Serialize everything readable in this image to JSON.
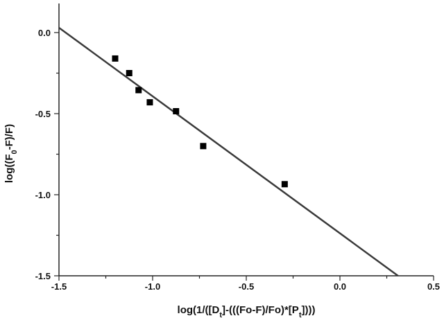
{
  "chart_data": {
    "type": "scatter",
    "xlabel": "log(1/([D_t]-(((Fo-F)/Fo)*[P_t])))",
    "ylabel": "log((F_0-F)/F)",
    "xlim": [
      -1.5,
      0.5
    ],
    "ylim": [
      -1.5,
      0.2
    ],
    "x_ticks": [
      "-1.5",
      "-1.0",
      "-0.5",
      "0.0",
      "0.5"
    ],
    "y_ticks": [
      "0.0",
      "-0.5",
      "-1.0",
      "-1.5"
    ],
    "x_tick_values": [
      -1.5,
      -1.0,
      -0.5,
      0.0,
      0.5
    ],
    "y_tick_values": [
      0.0,
      -0.5,
      -1.0,
      -1.5
    ],
    "points": [
      {
        "x": -1.2,
        "y": -0.16
      },
      {
        "x": -1.125,
        "y": -0.25
      },
      {
        "x": -1.075,
        "y": -0.355
      },
      {
        "x": -1.015,
        "y": -0.43
      },
      {
        "x": -0.875,
        "y": -0.485
      },
      {
        "x": -0.73,
        "y": -0.7
      },
      {
        "x": -0.295,
        "y": -0.935
      }
    ],
    "fit_line": {
      "x": [
        -1.5,
        0.31
      ],
      "y": [
        0.03,
        -1.5
      ]
    },
    "grid": false,
    "legend": "none",
    "colors": {
      "points": "#000000",
      "line": "#3a3a3a"
    }
  }
}
